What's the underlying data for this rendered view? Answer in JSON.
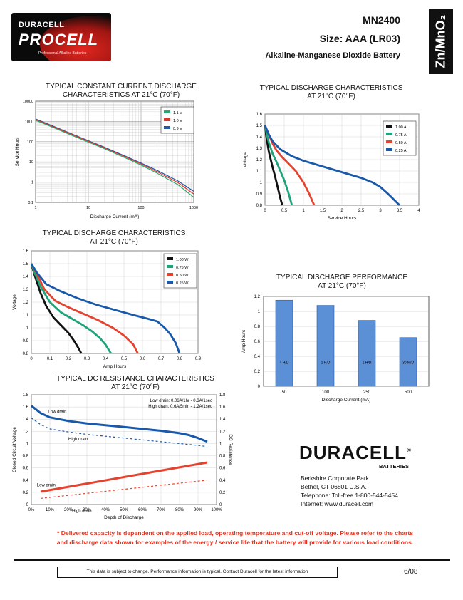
{
  "header": {
    "model": "MN2400",
    "size": "Size:  AAA (LR03)",
    "chemistry_desc": "Alkaline-Manganese Dioxide Battery",
    "chemistry_tab": "Zn/MnO₂"
  },
  "logo": {
    "line1": "DURACELL",
    "line2": "PROCELL",
    "tagline": "Professional Alkaline Batteries"
  },
  "charts": {
    "constant_current": {
      "title1": "TYPICAL CONSTANT CURRENT DISCHARGE",
      "title2": "CHARACTERISTICS AT 21°C (70°F)",
      "xlabel": "Discharge Current (mA)",
      "ylabel": "Service Hours",
      "xticks": [
        "1",
        "10",
        "100",
        "1000"
      ],
      "yticks": [
        "10000",
        "1000",
        "100",
        "10",
        "1",
        "0.1"
      ],
      "legend": [
        "1.1 V",
        "1.0 V",
        "0.9 V"
      ]
    },
    "discharge_current": {
      "title1": "TYPICAL DISCHARGE CHARACTERISTICS",
      "title2": "AT 21°C (70°F)",
      "xlabel": "Service Hours",
      "ylabel": "Voltage",
      "xticks": [
        "0",
        "0.5",
        "1",
        "1.5",
        "2",
        "2.5",
        "3",
        "3.5",
        "4"
      ],
      "yticks": [
        "1.6",
        "1.5",
        "1.4",
        "1.3",
        "1.2",
        "1.1",
        "1",
        "0.9",
        "0.8"
      ],
      "legend": [
        "1.00  A",
        "0.75  A",
        "0.50  A",
        "0.25  A"
      ]
    },
    "discharge_power": {
      "title1": "TYPICAL DISCHARGE CHARACTERISTICS",
      "title2": "AT 21°C (70°F)",
      "xlabel": "Amp Hours",
      "ylabel": "Voltage",
      "xticks": [
        "0",
        "0.1",
        "0.2",
        "0.3",
        "0.4",
        "0.5",
        "0.6",
        "0.7",
        "0.8",
        "0.9"
      ],
      "yticks": [
        "1.6",
        "1.5",
        "1.4",
        "1.3",
        "1.2",
        "1.1",
        "1",
        "0.9",
        "0.8"
      ],
      "legend": [
        "1.00  W",
        "0.75  W",
        "0.50  W",
        "0.25  W"
      ]
    },
    "performance": {
      "title1": "TYPICAL DISCHARGE PERFORMANCE",
      "title2": "AT 21°C (70°F)",
      "xlabel": "Discharge Current (mA)",
      "ylabel": "Amp Hours",
      "yticks": [
        "1.2",
        "1",
        "0.8",
        "0.6",
        "0.4",
        "0.2",
        "0"
      ]
    },
    "dc_resistance": {
      "title1": "TYPICAL DC RESISTANCE CHARACTERISTICS",
      "title2": "AT 21°C (70°F)",
      "xlabel": "Depth of Discharge",
      "ylabel_left": "Closed Circuit Voltage",
      "ylabel_right": "DC Resistance",
      "xticks": [
        "0%",
        "10%",
        "20%",
        "30%",
        "40%",
        "50%",
        "60%",
        "70%",
        "80%",
        "90%",
        "100%"
      ],
      "yticks": [
        "1.8",
        "1.6",
        "1.4",
        "1.2",
        "1",
        "0.8",
        "0.6",
        "0.4",
        "0.2",
        "0"
      ],
      "note1": "Low drain: 0.06A/1hr - 0.3A/1sec",
      "note2": "High drain: 0.6A/5min - 1.2A/1sec",
      "labels": [
        "Low drain",
        "High drain",
        "Low drain",
        "High drain"
      ]
    }
  },
  "chart_data": [
    {
      "type": "line",
      "title": "TYPICAL CONSTANT CURRENT DISCHARGE CHARACTERISTICS AT 21°C (70°F)",
      "xlabel": "Discharge Current (mA)",
      "ylabel": "Service Hours",
      "xscale": "log",
      "yscale": "log",
      "xlim": [
        1,
        1000
      ],
      "ylim": [
        0.1,
        10000
      ],
      "legend_position": "top-right",
      "grid": true,
      "x": [
        1,
        2,
        5,
        10,
        20,
        50,
        100,
        200,
        500,
        1000
      ],
      "series": [
        {
          "name": "1.1 V",
          "color": "#2aa86f",
          "values": [
            1150,
            540,
            200,
            95,
            45,
            16,
            7,
            2.8,
            0.75,
            0.18
          ]
        },
        {
          "name": "1.0 V",
          "color": "#d9352a",
          "values": [
            1250,
            590,
            220,
            105,
            50,
            18,
            8,
            3.3,
            0.95,
            0.26
          ]
        },
        {
          "name": "0.9 V",
          "color": "#2456a6",
          "values": [
            1330,
            630,
            235,
            112,
            54,
            19.5,
            8.8,
            3.8,
            1.15,
            0.35
          ]
        }
      ]
    },
    {
      "type": "line",
      "title": "TYPICAL DISCHARGE CHARACTERISTICS AT 21°C (70°F)",
      "xlabel": "Service Hours",
      "ylabel": "Voltage",
      "xlim": [
        0,
        4
      ],
      "ylim": [
        0.8,
        1.6
      ],
      "legend_position": "top-right",
      "grid": true,
      "series": [
        {
          "name": "1.00  A",
          "color": "#111111",
          "x": [
            0,
            0.05,
            0.1,
            0.15,
            0.2,
            0.25,
            0.3,
            0.35,
            0.4,
            0.45
          ],
          "values": [
            1.5,
            1.37,
            1.27,
            1.2,
            1.13,
            1.07,
            1.0,
            0.93,
            0.86,
            0.8
          ]
        },
        {
          "name": "0.75  A",
          "color": "#1fa37a",
          "x": [
            0,
            0.05,
            0.1,
            0.2,
            0.3,
            0.4,
            0.5,
            0.6,
            0.7
          ],
          "values": [
            1.5,
            1.42,
            1.35,
            1.25,
            1.18,
            1.1,
            1.02,
            0.92,
            0.8
          ]
        },
        {
          "name": "0.50  A",
          "color": "#e4432f",
          "x": [
            0,
            0.1,
            0.2,
            0.3,
            0.45,
            0.6,
            0.8,
            1.0,
            1.15,
            1.28
          ],
          "values": [
            1.5,
            1.42,
            1.34,
            1.28,
            1.22,
            1.17,
            1.1,
            1.0,
            0.9,
            0.8
          ]
        },
        {
          "name": "0.25  A",
          "color": "#1859a9",
          "x": [
            0,
            0.1,
            0.2,
            0.4,
            0.7,
            1.0,
            1.5,
            2.0,
            2.5,
            2.8,
            3.0,
            3.2,
            3.35,
            3.5
          ],
          "values": [
            1.5,
            1.42,
            1.36,
            1.29,
            1.23,
            1.19,
            1.14,
            1.09,
            1.04,
            1.0,
            0.96,
            0.9,
            0.85,
            0.8
          ]
        }
      ]
    },
    {
      "type": "line",
      "title": "TYPICAL DISCHARGE CHARACTERISTICS AT 21°C (70°F)",
      "xlabel": "Amp Hours",
      "ylabel": "Voltage",
      "xlim": [
        0,
        0.9
      ],
      "ylim": [
        0.8,
        1.6
      ],
      "legend_position": "top-right",
      "grid": true,
      "series": [
        {
          "name": "1.00  W",
          "color": "#111111",
          "x": [
            0,
            0.02,
            0.05,
            0.08,
            0.12,
            0.16,
            0.2,
            0.23,
            0.255,
            0.27
          ],
          "values": [
            1.5,
            1.4,
            1.27,
            1.17,
            1.08,
            1.02,
            0.96,
            0.9,
            0.84,
            0.8
          ]
        },
        {
          "name": "0.75  W",
          "color": "#1fa37a",
          "x": [
            0,
            0.02,
            0.05,
            0.1,
            0.16,
            0.22,
            0.28,
            0.33,
            0.37,
            0.4,
            0.43
          ],
          "values": [
            1.5,
            1.42,
            1.32,
            1.2,
            1.12,
            1.07,
            1.02,
            0.97,
            0.92,
            0.87,
            0.8
          ]
        },
        {
          "name": "0.50  W",
          "color": "#e4432f",
          "x": [
            0,
            0.03,
            0.07,
            0.13,
            0.2,
            0.28,
            0.36,
            0.44,
            0.5,
            0.55,
            0.575
          ],
          "values": [
            1.5,
            1.42,
            1.3,
            1.21,
            1.16,
            1.11,
            1.06,
            1.0,
            0.94,
            0.87,
            0.8
          ]
        },
        {
          "name": "0.25  W",
          "color": "#1859a9",
          "x": [
            0,
            0.03,
            0.08,
            0.15,
            0.25,
            0.35,
            0.45,
            0.55,
            0.63,
            0.68,
            0.72,
            0.75,
            0.78,
            0.8
          ],
          "values": [
            1.5,
            1.43,
            1.34,
            1.29,
            1.23,
            1.18,
            1.14,
            1.1,
            1.07,
            1.05,
            1.0,
            0.95,
            0.88,
            0.8
          ]
        }
      ]
    },
    {
      "type": "bar",
      "title": "TYPICAL DISCHARGE PERFORMANCE AT 21°C (70°F)",
      "xlabel": "Discharge Current (mA)",
      "ylabel": "Amp Hours",
      "ylim": [
        0,
        1.2
      ],
      "grid": true,
      "color": "#5b8fd6",
      "categories": [
        "50",
        "100",
        "250",
        "500"
      ],
      "values": [
        1.15,
        1.08,
        0.88,
        0.65
      ],
      "bar_labels": [
        "4 H/D",
        "1 H/D",
        "1 H/D",
        "30 M/D"
      ]
    },
    {
      "type": "line",
      "title": "TYPICAL DC RESISTANCE CHARACTERISTICS AT 21°C (70°F)",
      "xlabel": "Depth of Discharge",
      "ylabel": "Closed Circuit Voltage",
      "ylabel_right": "DC Resistance",
      "xlim": [
        0,
        100
      ],
      "ylim": [
        0,
        1.8
      ],
      "ylim_right": [
        0,
        1.8
      ],
      "grid": true,
      "series": [
        {
          "name": "Low drain",
          "axis": "left",
          "style": "solid",
          "color": "#1859a9",
          "x": [
            0,
            5,
            10,
            20,
            30,
            40,
            50,
            60,
            70,
            80,
            85,
            90,
            95
          ],
          "values": [
            1.62,
            1.5,
            1.43,
            1.37,
            1.33,
            1.3,
            1.27,
            1.24,
            1.21,
            1.17,
            1.14,
            1.09,
            1.03
          ]
        },
        {
          "name": "High drain",
          "axis": "left",
          "style": "dashed",
          "color": "#1859a9",
          "x": [
            0,
            5,
            10,
            20,
            30,
            40,
            50,
            60,
            70,
            80,
            90,
            95
          ],
          "values": [
            1.42,
            1.31,
            1.24,
            1.19,
            1.15,
            1.12,
            1.09,
            1.06,
            1.03,
            1.0,
            0.97,
            0.95
          ]
        },
        {
          "name": "Low drain",
          "axis": "right",
          "style": "solid",
          "color": "#e4432f",
          "x": [
            5,
            95
          ],
          "values": [
            0.21,
            0.69
          ]
        },
        {
          "name": "High drain",
          "axis": "right",
          "style": "dashed",
          "color": "#e4432f",
          "x": [
            5,
            95
          ],
          "values": [
            0.1,
            0.4
          ]
        }
      ]
    }
  ],
  "company": {
    "brand": "DURACELL",
    "reg": "®",
    "sub": "BATTERIES",
    "addr1": "Berkshire Corporate Park",
    "addr2": "Bethel, CT  06801 U.S.A.",
    "phone": "Telephone: Toll-free 1-800-544-5454",
    "web": "Internet: www.duracell.com"
  },
  "footnote": {
    "line1": "* Delivered capacity is dependent on the applied load, operating temperature and cut-off voltage.  Please refer to the charts",
    "line2": "and discharge data shown for examples of the energy / service life that the battery will provide for various load conditions."
  },
  "footer": {
    "disclaimer": "This data is subject to change.  Performance information is typical.  Contact Duracell for the latest information",
    "date": "6/08"
  }
}
